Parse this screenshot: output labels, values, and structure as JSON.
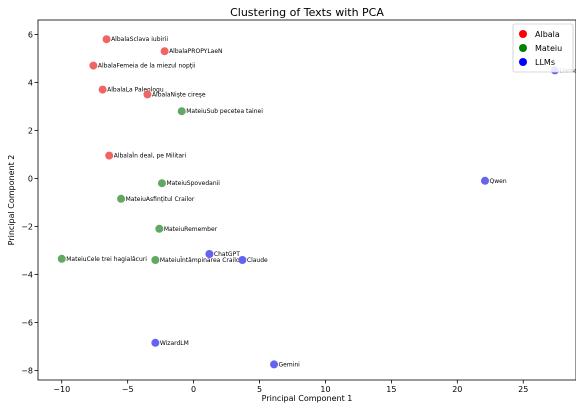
{
  "chart_data": {
    "type": "scatter",
    "title": "Clustering of Texts with PCA",
    "xlabel": "Principal Component 1",
    "ylabel": "Principal Component 2",
    "xlim": [
      -11.8,
      29.0
    ],
    "ylim": [
      -8.4,
      6.6
    ],
    "xticks": [
      -10,
      -5,
      0,
      5,
      10,
      15,
      20,
      25
    ],
    "yticks": [
      -8,
      -6,
      -4,
      -2,
      0,
      2,
      4,
      6
    ],
    "grid": false,
    "legend_position": "top-right",
    "series": [
      {
        "name": "Albala",
        "legend_color": "#ff0000",
        "point_color": "#f06464",
        "points": [
          {
            "label": "AlbalaSclava iubirii",
            "x": -6.6,
            "y": 5.8
          },
          {
            "label": "AlbalaPROPYLaeN",
            "x": -2.2,
            "y": 5.3
          },
          {
            "label": "AlbalaFemeia de la miezul nopții",
            "x": -7.6,
            "y": 4.7
          },
          {
            "label": "AlbalaLa Paleologu",
            "x": -6.9,
            "y": 3.7
          },
          {
            "label": "AlbalaNiște cireșe",
            "x": -3.5,
            "y": 3.5
          },
          {
            "label": "AlbalaÎn deal, pe Militari",
            "x": -6.4,
            "y": 0.95
          }
        ]
      },
      {
        "name": "Mateiu",
        "legend_color": "#008000",
        "point_color": "#62a862",
        "points": [
          {
            "label": "MateiuSub pecetea tainei",
            "x": -0.9,
            "y": 2.8
          },
          {
            "label": "MateiuSpovedanii",
            "x": -2.4,
            "y": -0.2
          },
          {
            "label": "MateiuAsfințitul Crailor",
            "x": -5.5,
            "y": -0.85
          },
          {
            "label": "MateiuRemember",
            "x": -2.6,
            "y": -2.1
          },
          {
            "label": "MateiuCele trei hagialâcuri",
            "x": -10.0,
            "y": -3.35
          },
          {
            "label": "MateiuÎntâmpinarea Crailor",
            "x": -2.9,
            "y": -3.4
          }
        ]
      },
      {
        "name": "LLMs",
        "legend_color": "#0000ff",
        "point_color": "#6464f0",
        "points": [
          {
            "label": "Llama",
            "x": 27.4,
            "y": 4.5
          },
          {
            "label": "Qwen",
            "x": 22.1,
            "y": -0.1
          },
          {
            "label": "ChatGPT",
            "x": 1.2,
            "y": -3.15
          },
          {
            "label": "Claude",
            "x": 3.7,
            "y": -3.4
          },
          {
            "label": "WizardLM",
            "x": -2.9,
            "y": -6.85
          },
          {
            "label": "Gemini",
            "x": 6.1,
            "y": -7.75
          }
        ]
      }
    ]
  }
}
